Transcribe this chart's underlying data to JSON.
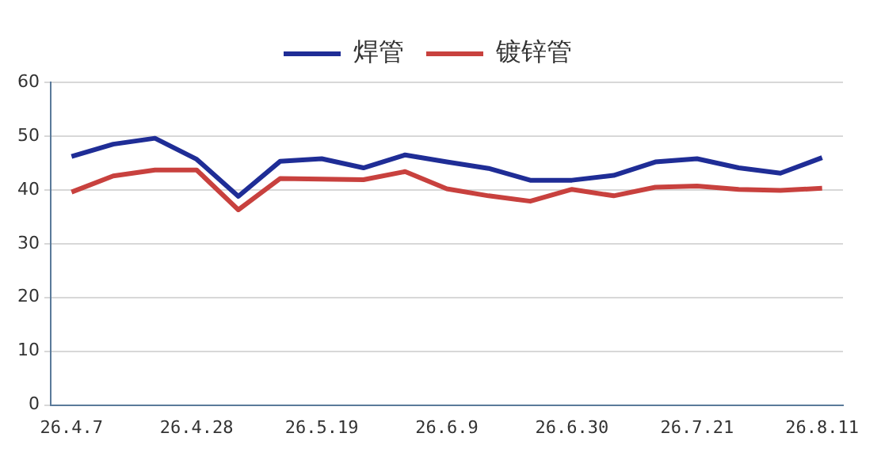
{
  "chart_data": {
    "type": "line",
    "categories": [
      "26.4.7",
      null,
      null,
      "26.4.28",
      null,
      null,
      "26.5.19",
      null,
      null,
      "26.6.9",
      null,
      null,
      "26.6.30",
      null,
      null,
      "26.7.21",
      null,
      null,
      "26.8.11"
    ],
    "series": [
      {
        "name": "焊管",
        "color": "#1f2d96",
        "values": [
          46.2,
          48.5,
          49.6,
          45.7,
          38.8,
          45.3,
          45.8,
          44.1,
          46.5,
          45.2,
          44.0,
          41.8,
          41.8,
          42.7,
          45.2,
          45.8,
          44.1,
          43.1,
          46.0
        ]
      },
      {
        "name": "镀锌管",
        "color": "#c8413e",
        "values": [
          39.6,
          42.6,
          43.7,
          43.7,
          36.3,
          42.1,
          42.0,
          41.9,
          43.4,
          40.2,
          38.9,
          37.9,
          40.1,
          38.9,
          40.5,
          40.7,
          40.1,
          39.9,
          40.3
        ]
      }
    ],
    "ylim": [
      0,
      60
    ],
    "yticks": [
      0,
      10,
      20,
      30,
      40,
      50,
      60
    ],
    "grid": "y",
    "legend": "top",
    "marker": "none",
    "line_style": "solid"
  }
}
